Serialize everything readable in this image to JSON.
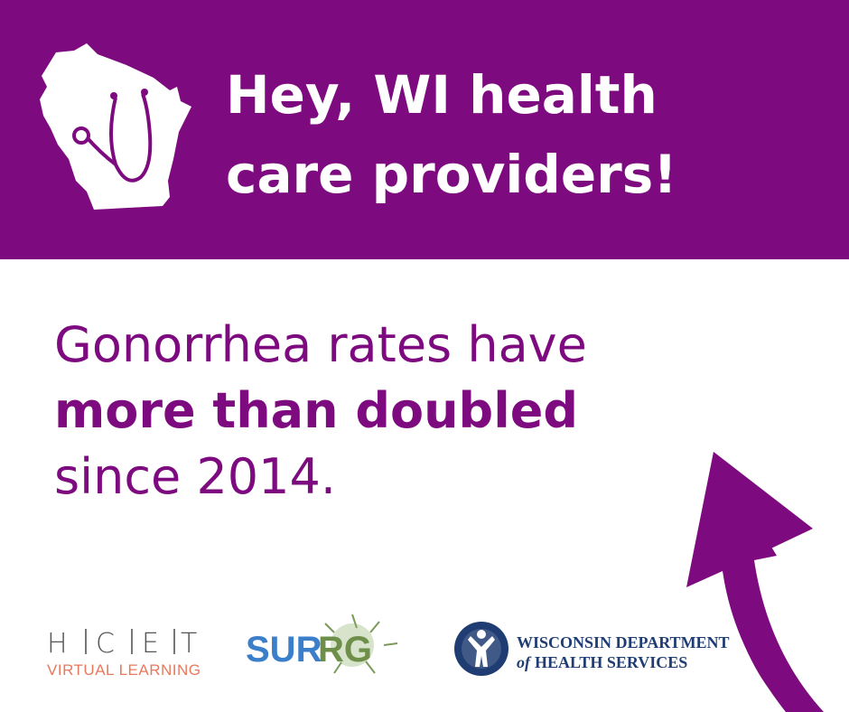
{
  "header": {
    "title_lines": [
      "Hey, WI health",
      "care providers!"
    ]
  },
  "message": {
    "line_1": "Gonorrhea rates have",
    "line_2_bold": "more than doubled",
    "line_3": "since 2014."
  },
  "logos": {
    "hcet": {
      "letters": [
        "H",
        "C",
        "E",
        "T"
      ],
      "subtitle": "VIRTUAL LEARNING"
    },
    "surrg": {
      "parts": [
        "SUR",
        "RG"
      ]
    },
    "dhs": {
      "line_1": "WISCONSIN DEPARTMENT",
      "line_2_prefix": "of",
      "line_2": "HEALTH SERVICES"
    }
  }
}
